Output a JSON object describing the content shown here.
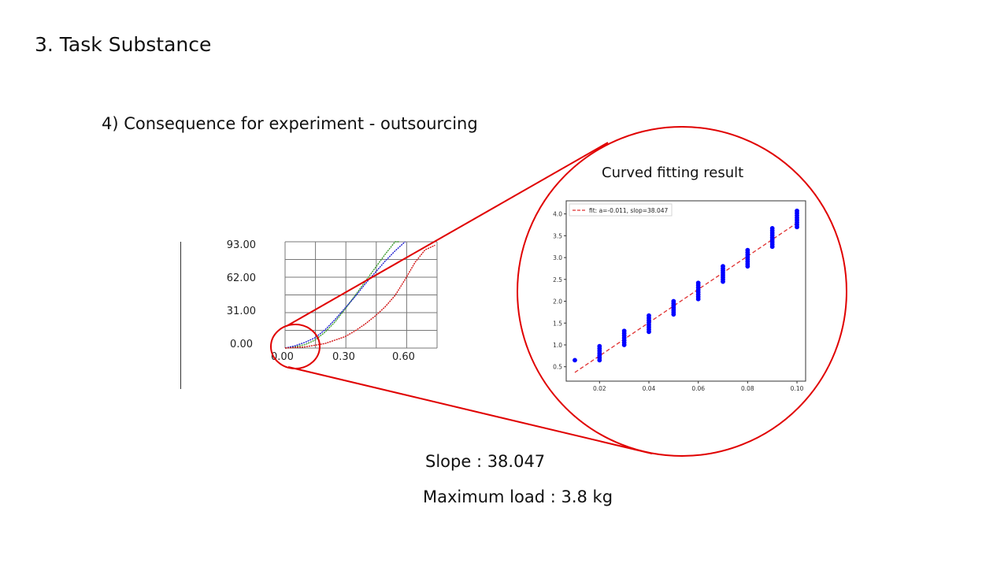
{
  "slide": {
    "heading": "3. Task Substance",
    "subheading": "4) Consequence for experiment - outsourcing",
    "zoom_title": "Curved fitting result",
    "slope_text": "Slope : 38.047",
    "max_load_text": "Maximum load : 3.8 kg"
  },
  "colors": {
    "accent": "#e00000",
    "green_curve": "#3a9a2a",
    "blue_curve": "#1a1ad0",
    "red_curve": "#d01010",
    "scatter": "#0000ff",
    "fit": "#e03030"
  },
  "chart_data": [
    {
      "type": "line",
      "x_tick_labels": [
        "0.00",
        "0.30",
        "0.60"
      ],
      "y_tick_labels": [
        "0.00",
        "31.00",
        "62.00",
        "93.00"
      ],
      "xlim": [
        0,
        0.76
      ],
      "ylim": [
        0,
        93
      ],
      "grid": true,
      "series": [
        {
          "color": "green",
          "x": [
            0,
            0.05,
            0.1,
            0.15,
            0.2,
            0.25,
            0.3,
            0.35,
            0.4,
            0.45,
            0.5,
            0.55,
            0.57
          ],
          "y": [
            0,
            1,
            3,
            7,
            14,
            23,
            34,
            46,
            58,
            70,
            82,
            93,
            96
          ]
        },
        {
          "color": "blue",
          "x": [
            0,
            0.05,
            0.1,
            0.15,
            0.2,
            0.25,
            0.3,
            0.35,
            0.4,
            0.45,
            0.5,
            0.55,
            0.6
          ],
          "y": [
            0,
            2,
            5,
            9,
            16,
            25,
            35,
            45,
            56,
            66,
            76,
            85,
            93
          ]
        },
        {
          "color": "red",
          "x": [
            0,
            0.1,
            0.2,
            0.3,
            0.35,
            0.4,
            0.45,
            0.5,
            0.55,
            0.6,
            0.65,
            0.7,
            0.75
          ],
          "y": [
            0,
            1,
            4,
            10,
            15,
            21,
            28,
            36,
            46,
            60,
            75,
            86,
            90
          ]
        }
      ]
    },
    {
      "type": "scatter",
      "title": "Curved fitting result",
      "x_ticks": [
        "0.02",
        "0.04",
        "0.06",
        "0.08",
        "0.10"
      ],
      "y_ticks": [
        "0.5",
        "1.0",
        "1.5",
        "2.0",
        "2.5",
        "3.0",
        "3.5",
        "4.0"
      ],
      "xlim": [
        0.0065,
        0.1035
      ],
      "ylim": [
        0.17,
        4.3
      ],
      "legend": {
        "text": "fit: a=-0.011, slop=38.047",
        "position": "top-left"
      },
      "fit": {
        "intercept": -0.011,
        "slope": 38.047,
        "x_range": [
          0.01,
          0.1
        ]
      },
      "points": [
        {
          "x": 0.01,
          "ymin": 0.64,
          "ymax": 0.66
        },
        {
          "x": 0.02,
          "ymin": 0.65,
          "ymax": 0.97
        },
        {
          "x": 0.03,
          "ymin": 1.0,
          "ymax": 1.32
        },
        {
          "x": 0.04,
          "ymin": 1.3,
          "ymax": 1.67
        },
        {
          "x": 0.05,
          "ymin": 1.7,
          "ymax": 2.0
        },
        {
          "x": 0.06,
          "ymin": 2.05,
          "ymax": 2.42
        },
        {
          "x": 0.07,
          "ymin": 2.45,
          "ymax": 2.8
        },
        {
          "x": 0.08,
          "ymin": 2.8,
          "ymax": 3.17
        },
        {
          "x": 0.09,
          "ymin": 3.25,
          "ymax": 3.67
        },
        {
          "x": 0.1,
          "ymin": 3.7,
          "ymax": 4.07
        }
      ]
    }
  ]
}
